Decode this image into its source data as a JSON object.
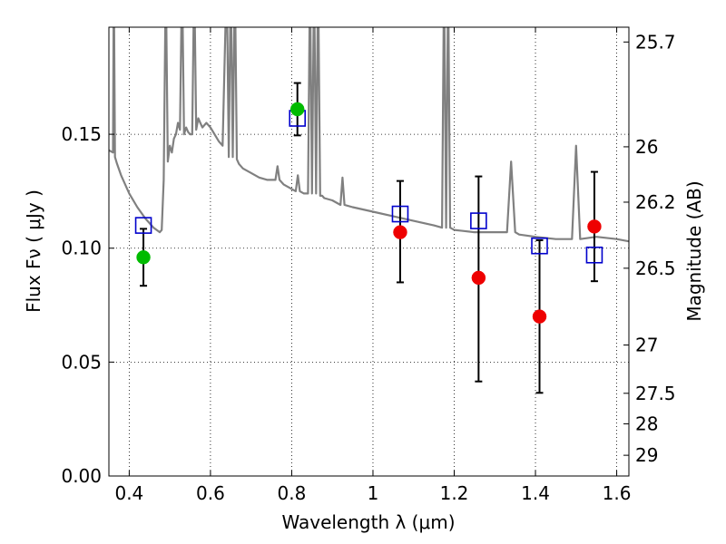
{
  "chart_data": {
    "type": "scatter",
    "xlabel": "Wavelength  λ (μm)",
    "ylabel": "Flux  Fν  ( μJy )",
    "y2label": "Magnitude (AB)",
    "xlim": [
      0.35,
      1.63
    ],
    "ylim": [
      0.0,
      0.197
    ],
    "grid": true,
    "x_ticks": [
      0.4,
      0.6,
      0.8,
      1.0,
      1.2,
      1.4,
      1.6
    ],
    "x_tick_labels": [
      "0.4",
      "0.6",
      "0.8",
      "1",
      "1.2",
      "1.4",
      "1.6"
    ],
    "y_ticks": [
      0.0,
      0.05,
      0.1,
      0.15
    ],
    "y_tick_labels": [
      "0.00",
      "0.05",
      "0.10",
      "0.15"
    ],
    "magnitude_ticks": [
      {
        "label": "25.7",
        "flux": 0.1905
      },
      {
        "label": "26",
        "flux": 0.1445
      },
      {
        "label": "26.2",
        "flux": 0.1202
      },
      {
        "label": "26.5",
        "flux": 0.0912
      },
      {
        "label": "27",
        "flux": 0.0575
      },
      {
        "label": "27.5",
        "flux": 0.0363
      },
      {
        "label": "28",
        "flux": 0.0229
      },
      {
        "label": "29",
        "flux": 0.0091
      }
    ],
    "series": [
      {
        "kind": "observed_green",
        "color": "#00bb00",
        "points": [
          {
            "x": 0.435,
            "y": 0.096,
            "err_low": 0.0835,
            "err_high": 0.1085
          },
          {
            "x": 0.814,
            "y": 0.161,
            "err_low": 0.1495,
            "err_high": 0.1725
          }
        ]
      },
      {
        "kind": "observed_red",
        "color": "#ee0000",
        "points": [
          {
            "x": 1.067,
            "y": 0.107,
            "err_low": 0.085,
            "err_high": 0.1295
          },
          {
            "x": 1.26,
            "y": 0.087,
            "err_low": 0.0415,
            "err_high": 0.1315
          },
          {
            "x": 1.41,
            "y": 0.07,
            "err_low": 0.0365,
            "err_high": 0.1035
          },
          {
            "x": 1.545,
            "y": 0.1095,
            "err_low": 0.0855,
            "err_high": 0.1335
          }
        ]
      },
      {
        "kind": "model_bandpass",
        "color": "#0000cc",
        "points": [
          {
            "x": 0.435,
            "y": 0.11
          },
          {
            "x": 0.814,
            "y": 0.157
          },
          {
            "x": 1.067,
            "y": 0.115
          },
          {
            "x": 1.26,
            "y": 0.112
          },
          {
            "x": 1.41,
            "y": 0.101
          },
          {
            "x": 1.545,
            "y": 0.097
          }
        ]
      }
    ],
    "spectrum": {
      "color": "#808080",
      "x": [
        0.35,
        0.36,
        0.362,
        0.365,
        0.37,
        0.38,
        0.4,
        0.42,
        0.44,
        0.46,
        0.475,
        0.48,
        0.485,
        0.49,
        0.495,
        0.5,
        0.505,
        0.51,
        0.515,
        0.52,
        0.525,
        0.53,
        0.535,
        0.54,
        0.545,
        0.55,
        0.555,
        0.56,
        0.565,
        0.57,
        0.575,
        0.58,
        0.59,
        0.6,
        0.61,
        0.62,
        0.63,
        0.64,
        0.645,
        0.65,
        0.655,
        0.66,
        0.665,
        0.67,
        0.68,
        0.7,
        0.72,
        0.74,
        0.76,
        0.765,
        0.77,
        0.78,
        0.8,
        0.81,
        0.815,
        0.82,
        0.83,
        0.84,
        0.845,
        0.85,
        0.855,
        0.86,
        0.865,
        0.87,
        0.875,
        0.88,
        0.9,
        0.92,
        0.925,
        0.93,
        0.95,
        1.0,
        1.05,
        1.1,
        1.15,
        1.17,
        1.175,
        1.18,
        1.185,
        1.19,
        1.2,
        1.25,
        1.3,
        1.33,
        1.34,
        1.35,
        1.36,
        1.4,
        1.45,
        1.49,
        1.5,
        1.51,
        1.55,
        1.6,
        1.63
      ],
      "y": [
        0.143,
        0.142,
        0.22,
        0.14,
        0.137,
        0.132,
        0.124,
        0.118,
        0.113,
        0.109,
        0.107,
        0.108,
        0.13,
        0.22,
        0.138,
        0.145,
        0.142,
        0.148,
        0.15,
        0.155,
        0.152,
        0.22,
        0.15,
        0.153,
        0.151,
        0.15,
        0.15,
        0.22,
        0.152,
        0.157,
        0.155,
        0.153,
        0.155,
        0.153,
        0.15,
        0.147,
        0.145,
        0.22,
        0.14,
        0.22,
        0.14,
        0.22,
        0.139,
        0.137,
        0.135,
        0.133,
        0.131,
        0.13,
        0.13,
        0.136,
        0.13,
        0.128,
        0.126,
        0.125,
        0.132,
        0.125,
        0.124,
        0.124,
        0.22,
        0.124,
        0.22,
        0.124,
        0.22,
        0.123,
        0.123,
        0.122,
        0.121,
        0.119,
        0.131,
        0.119,
        0.118,
        0.116,
        0.114,
        0.112,
        0.11,
        0.109,
        0.22,
        0.109,
        0.22,
        0.109,
        0.108,
        0.107,
        0.107,
        0.107,
        0.138,
        0.107,
        0.106,
        0.105,
        0.104,
        0.104,
        0.145,
        0.104,
        0.105,
        0.104,
        0.103
      ]
    }
  }
}
